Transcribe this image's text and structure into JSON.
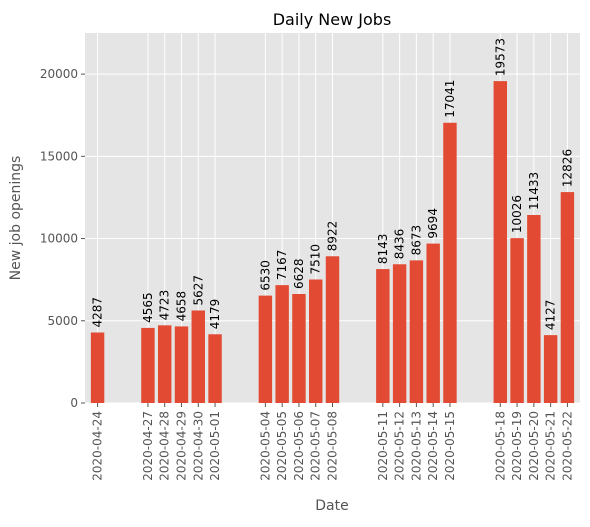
{
  "chart_data": {
    "type": "bar",
    "title": "Daily New Jobs",
    "xlabel": "Date",
    "ylabel": "New job openings",
    "ylim": [
      0,
      22500
    ],
    "yticks": [
      0,
      5000,
      10000,
      15000,
      20000
    ],
    "grid": true,
    "bar_color": "#E24A33",
    "background_color": "#E5E5E5",
    "categories": [
      "2020-04-24",
      "2020-04-27",
      "2020-04-28",
      "2020-04-29",
      "2020-04-30",
      "2020-05-01",
      "2020-05-04",
      "2020-05-05",
      "2020-05-06",
      "2020-05-07",
      "2020-05-08",
      "2020-05-11",
      "2020-05-12",
      "2020-05-13",
      "2020-05-14",
      "2020-05-15",
      "2020-05-18",
      "2020-05-19",
      "2020-05-20",
      "2020-05-21",
      "2020-05-22"
    ],
    "values": [
      4287,
      4565,
      4723,
      4658,
      5627,
      4179,
      6530,
      7167,
      6628,
      7510,
      8922,
      8143,
      8436,
      8673,
      9694,
      17041,
      19573,
      10026,
      11433,
      4127,
      12826
    ]
  }
}
